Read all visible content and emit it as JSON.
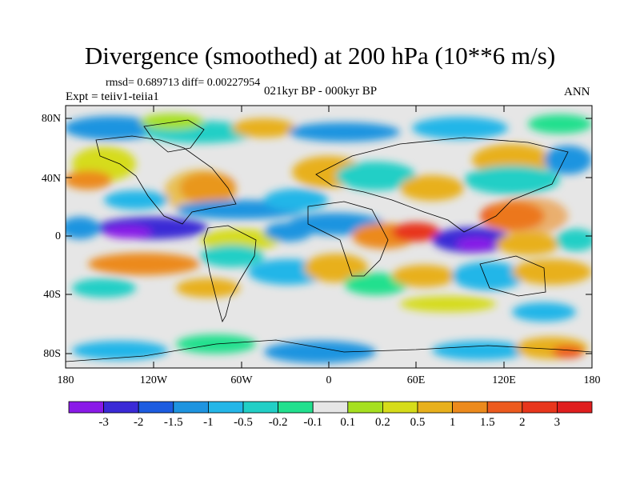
{
  "title": "Divergence (smoothed) at 200 hPa (10**6 m/s)",
  "stats": {
    "rmsd_line": "rmsd= 0.689713 diff= 0.00227954",
    "expt": "Expt = teiiv1-teiia1",
    "period": "021kyr BP - 000kyr BP",
    "season": "ANN"
  },
  "axes": {
    "lat_ticks": [
      "80N",
      "40N",
      "0",
      "40S",
      "80S"
    ],
    "lon_ticks": [
      "180",
      "120W",
      "60W",
      "0",
      "60E",
      "120E",
      "180"
    ]
  },
  "colorbar": {
    "labels": [
      "-3",
      "-2",
      "-1.5",
      "-1",
      "-0.5",
      "-0.2",
      "-0.1",
      "0.1",
      "0.2",
      "0.5",
      "1",
      "1.5",
      "2",
      "3"
    ],
    "colors": [
      "#8a1ae8",
      "#3a2ad6",
      "#1c5ce0",
      "#1e94e0",
      "#24b6e8",
      "#22cfc6",
      "#22e08e",
      "#e6e6e6",
      "#a6e020",
      "#d6dc1a",
      "#e8b01c",
      "#ec8a1c",
      "#ec5a1e",
      "#e8361c",
      "#e01e1e"
    ]
  },
  "map_palette": {
    "neutral": "#e6e6e6",
    "coast": "#000000"
  }
}
